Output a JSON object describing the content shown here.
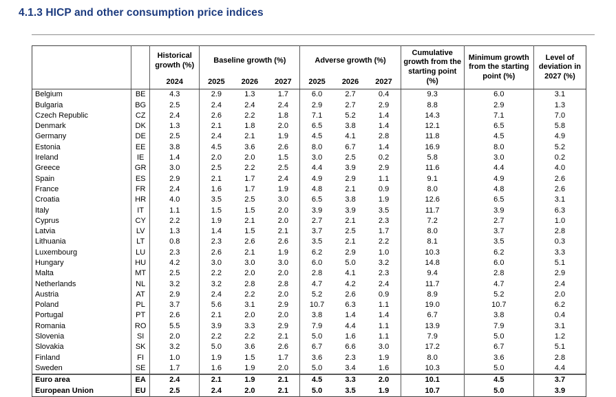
{
  "page": {
    "title": "4.1.3 HICP and other consumption price indices"
  },
  "table": {
    "header": {
      "historical": {
        "label": "Historical growth (%)",
        "year": "2024"
      },
      "baseline": {
        "label": "Baseline growth (%)",
        "years": [
          "2025",
          "2026",
          "2027"
        ]
      },
      "adverse": {
        "label": "Adverse growth (%)",
        "years": [
          "2025",
          "2026",
          "2027"
        ]
      },
      "cumulative": "Cumulative growth from the starting point (%)",
      "minimum": "Minimum growth from the starting point (%)",
      "deviation": "Level of deviation in 2027 (%)"
    },
    "rows": [
      {
        "country": "Belgium",
        "code": "BE",
        "historical_2024": "4.3",
        "baseline": [
          "2.9",
          "1.3",
          "1.7"
        ],
        "adverse": [
          "6.0",
          "2.7",
          "0.4"
        ],
        "cumulative": "9.3",
        "minimum": "6.0",
        "deviation": "3.1"
      },
      {
        "country": "Bulgaria",
        "code": "BG",
        "historical_2024": "2.5",
        "baseline": [
          "2.4",
          "2.4",
          "2.4"
        ],
        "adverse": [
          "2.9",
          "2.7",
          "2.9"
        ],
        "cumulative": "8.8",
        "minimum": "2.9",
        "deviation": "1.3"
      },
      {
        "country": "Czech Republic",
        "code": "CZ",
        "historical_2024": "2.4",
        "baseline": [
          "2.6",
          "2.2",
          "1.8"
        ],
        "adverse": [
          "7.1",
          "5.2",
          "1.4"
        ],
        "cumulative": "14.3",
        "minimum": "7.1",
        "deviation": "7.0"
      },
      {
        "country": "Denmark",
        "code": "DK",
        "historical_2024": "1.3",
        "baseline": [
          "2.1",
          "1.8",
          "2.0"
        ],
        "adverse": [
          "6.5",
          "3.8",
          "1.4"
        ],
        "cumulative": "12.1",
        "minimum": "6.5",
        "deviation": "5.8"
      },
      {
        "country": "Germany",
        "code": "DE",
        "historical_2024": "2.5",
        "baseline": [
          "2.4",
          "2.1",
          "1.9"
        ],
        "adverse": [
          "4.5",
          "4.1",
          "2.8"
        ],
        "cumulative": "11.8",
        "minimum": "4.5",
        "deviation": "4.9"
      },
      {
        "country": "Estonia",
        "code": "EE",
        "historical_2024": "3.8",
        "baseline": [
          "4.5",
          "3.6",
          "2.6"
        ],
        "adverse": [
          "8.0",
          "6.7",
          "1.4"
        ],
        "cumulative": "16.9",
        "minimum": "8.0",
        "deviation": "5.2"
      },
      {
        "country": "Ireland",
        "code": "IE",
        "historical_2024": "1.4",
        "baseline": [
          "2.0",
          "2.0",
          "1.5"
        ],
        "adverse": [
          "3.0",
          "2.5",
          "0.2"
        ],
        "cumulative": "5.8",
        "minimum": "3.0",
        "deviation": "0.2"
      },
      {
        "country": "Greece",
        "code": "GR",
        "historical_2024": "3.0",
        "baseline": [
          "2.5",
          "2.2",
          "2.5"
        ],
        "adverse": [
          "4.4",
          "3.9",
          "2.9"
        ],
        "cumulative": "11.6",
        "minimum": "4.4",
        "deviation": "4.0"
      },
      {
        "country": "Spain",
        "code": "ES",
        "historical_2024": "2.9",
        "baseline": [
          "2.1",
          "1.7",
          "2.4"
        ],
        "adverse": [
          "4.9",
          "2.9",
          "1.1"
        ],
        "cumulative": "9.1",
        "minimum": "4.9",
        "deviation": "2.6"
      },
      {
        "country": "France",
        "code": "FR",
        "historical_2024": "2.4",
        "baseline": [
          "1.6",
          "1.7",
          "1.9"
        ],
        "adverse": [
          "4.8",
          "2.1",
          "0.9"
        ],
        "cumulative": "8.0",
        "minimum": "4.8",
        "deviation": "2.6"
      },
      {
        "country": "Croatia",
        "code": "HR",
        "historical_2024": "4.0",
        "baseline": [
          "3.5",
          "2.5",
          "3.0"
        ],
        "adverse": [
          "6.5",
          "3.8",
          "1.9"
        ],
        "cumulative": "12.6",
        "minimum": "6.5",
        "deviation": "3.1"
      },
      {
        "country": "Italy",
        "code": "IT",
        "historical_2024": "1.1",
        "baseline": [
          "1.5",
          "1.5",
          "2.0"
        ],
        "adverse": [
          "3.9",
          "3.9",
          "3.5"
        ],
        "cumulative": "11.7",
        "minimum": "3.9",
        "deviation": "6.3"
      },
      {
        "country": "Cyprus",
        "code": "CY",
        "historical_2024": "2.2",
        "baseline": [
          "1.9",
          "2.1",
          "2.0"
        ],
        "adverse": [
          "2.7",
          "2.1",
          "2.3"
        ],
        "cumulative": "7.2",
        "minimum": "2.7",
        "deviation": "1.0"
      },
      {
        "country": "Latvia",
        "code": "LV",
        "historical_2024": "1.3",
        "baseline": [
          "1.4",
          "1.5",
          "2.1"
        ],
        "adverse": [
          "3.7",
          "2.5",
          "1.7"
        ],
        "cumulative": "8.0",
        "minimum": "3.7",
        "deviation": "2.8"
      },
      {
        "country": "Lithuania",
        "code": "LT",
        "historical_2024": "0.8",
        "baseline": [
          "2.3",
          "2.6",
          "2.6"
        ],
        "adverse": [
          "3.5",
          "2.1",
          "2.2"
        ],
        "cumulative": "8.1",
        "minimum": "3.5",
        "deviation": "0.3"
      },
      {
        "country": "Luxembourg",
        "code": "LU",
        "historical_2024": "2.3",
        "baseline": [
          "2.6",
          "2.1",
          "1.9"
        ],
        "adverse": [
          "6.2",
          "2.9",
          "1.0"
        ],
        "cumulative": "10.3",
        "minimum": "6.2",
        "deviation": "3.3"
      },
      {
        "country": "Hungary",
        "code": "HU",
        "historical_2024": "4.2",
        "baseline": [
          "3.0",
          "3.0",
          "3.0"
        ],
        "adverse": [
          "6.0",
          "5.0",
          "3.2"
        ],
        "cumulative": "14.8",
        "minimum": "6.0",
        "deviation": "5.1"
      },
      {
        "country": "Malta",
        "code": "MT",
        "historical_2024": "2.5",
        "baseline": [
          "2.2",
          "2.0",
          "2.0"
        ],
        "adverse": [
          "2.8",
          "4.1",
          "2.3"
        ],
        "cumulative": "9.4",
        "minimum": "2.8",
        "deviation": "2.9"
      },
      {
        "country": "Netherlands",
        "code": "NL",
        "historical_2024": "3.2",
        "baseline": [
          "3.2",
          "2.8",
          "2.8"
        ],
        "adverse": [
          "4.7",
          "4.2",
          "2.4"
        ],
        "cumulative": "11.7",
        "minimum": "4.7",
        "deviation": "2.4"
      },
      {
        "country": "Austria",
        "code": "AT",
        "historical_2024": "2.9",
        "baseline": [
          "2.4",
          "2.2",
          "2.0"
        ],
        "adverse": [
          "5.2",
          "2.6",
          "0.9"
        ],
        "cumulative": "8.9",
        "minimum": "5.2",
        "deviation": "2.0"
      },
      {
        "country": "Poland",
        "code": "PL",
        "historical_2024": "3.7",
        "baseline": [
          "5.6",
          "3.1",
          "2.9"
        ],
        "adverse": [
          "10.7",
          "6.3",
          "1.1"
        ],
        "cumulative": "19.0",
        "minimum": "10.7",
        "deviation": "6.2"
      },
      {
        "country": "Portugal",
        "code": "PT",
        "historical_2024": "2.6",
        "baseline": [
          "2.1",
          "2.0",
          "2.0"
        ],
        "adverse": [
          "3.8",
          "1.4",
          "1.4"
        ],
        "cumulative": "6.7",
        "minimum": "3.8",
        "deviation": "0.4"
      },
      {
        "country": "Romania",
        "code": "RO",
        "historical_2024": "5.5",
        "baseline": [
          "3.9",
          "3.3",
          "2.9"
        ],
        "adverse": [
          "7.9",
          "4.4",
          "1.1"
        ],
        "cumulative": "13.9",
        "minimum": "7.9",
        "deviation": "3.1"
      },
      {
        "country": "Slovenia",
        "code": "SI",
        "historical_2024": "2.0",
        "baseline": [
          "2.2",
          "2.2",
          "2.1"
        ],
        "adverse": [
          "5.0",
          "1.6",
          "1.1"
        ],
        "cumulative": "7.9",
        "minimum": "5.0",
        "deviation": "1.2"
      },
      {
        "country": "Slovakia",
        "code": "SK",
        "historical_2024": "3.2",
        "baseline": [
          "5.0",
          "3.6",
          "2.6"
        ],
        "adverse": [
          "6.7",
          "6.6",
          "3.0"
        ],
        "cumulative": "17.2",
        "minimum": "6.7",
        "deviation": "5.1"
      },
      {
        "country": "Finland",
        "code": "FI",
        "historical_2024": "1.0",
        "baseline": [
          "1.9",
          "1.5",
          "1.7"
        ],
        "adverse": [
          "3.6",
          "2.3",
          "1.9"
        ],
        "cumulative": "8.0",
        "minimum": "3.6",
        "deviation": "2.8"
      },
      {
        "country": "Sweden",
        "code": "SE",
        "historical_2024": "1.7",
        "baseline": [
          "1.6",
          "1.9",
          "2.0"
        ],
        "adverse": [
          "5.0",
          "3.4",
          "1.6"
        ],
        "cumulative": "10.3",
        "minimum": "5.0",
        "deviation": "4.4"
      },
      {
        "country": "Euro area",
        "code": "EA",
        "historical_2024": "2.4",
        "baseline": [
          "2.1",
          "1.9",
          "2.1"
        ],
        "adverse": [
          "4.5",
          "3.3",
          "2.0"
        ],
        "cumulative": "10.1",
        "minimum": "4.5",
        "deviation": "3.7",
        "emphasis": true
      },
      {
        "country": "European Union",
        "code": "EU",
        "historical_2024": "2.5",
        "baseline": [
          "2.4",
          "2.0",
          "2.1"
        ],
        "adverse": [
          "5.0",
          "3.5",
          "1.9"
        ],
        "cumulative": "10.7",
        "minimum": "5.0",
        "deviation": "3.9",
        "emphasis": true
      }
    ]
  }
}
